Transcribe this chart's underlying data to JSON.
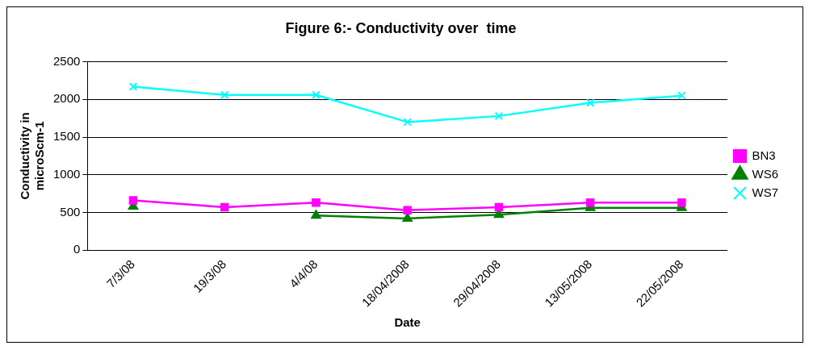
{
  "chart_data": {
    "type": "line",
    "title": "Figure 6:- Conductivity over  time",
    "xlabel": "Date",
    "ylabel": "Conductivity in microScm-1",
    "categories": [
      "7/3/08",
      "19/3/08",
      "4/4/08",
      "18/04/2008",
      "29/04/2008",
      "13/05/2008",
      "22/05/2008"
    ],
    "series": [
      {
        "name": "BN3",
        "color": "#ff00ff",
        "marker": "square",
        "values": [
          660,
          570,
          630,
          530,
          570,
          630,
          630
        ]
      },
      {
        "name": "WS6",
        "color": "#008000",
        "marker": "triangle",
        "values": [
          580,
          null,
          460,
          420,
          470,
          560,
          560
        ]
      },
      {
        "name": "WS7",
        "color": "#00ffff",
        "marker": "cross",
        "values": [
          2170,
          2060,
          2060,
          1700,
          1780,
          1955,
          2050
        ]
      }
    ],
    "ylim": [
      0,
      2500
    ],
    "yticks": [
      0,
      500,
      1000,
      1500,
      2000,
      2500
    ],
    "grid": "y",
    "legend": "right"
  }
}
